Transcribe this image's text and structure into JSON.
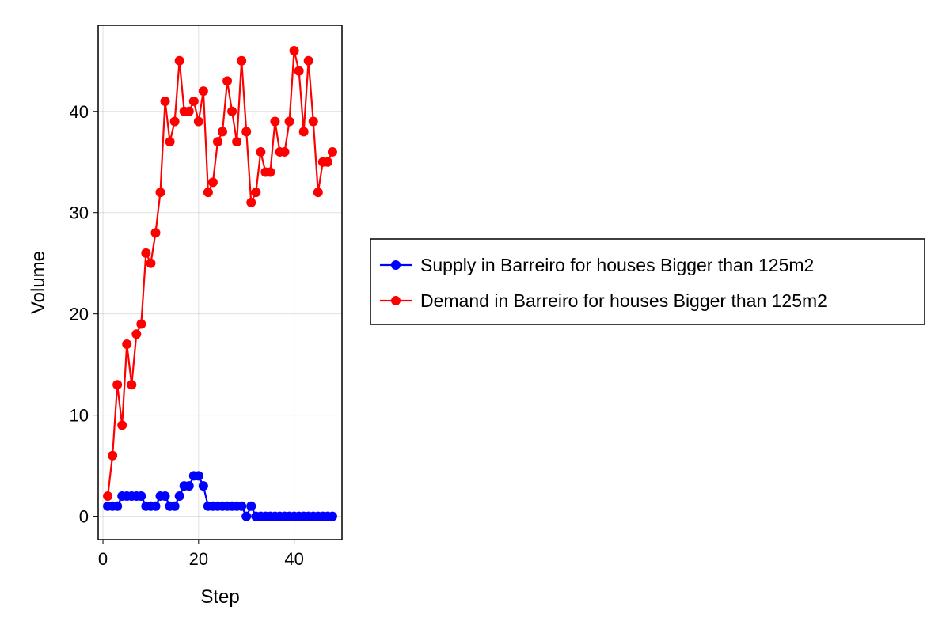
{
  "chart_data": {
    "type": "line",
    "title": "",
    "xlabel": "Step",
    "ylabel": "Volume",
    "xlim": [
      -1,
      50
    ],
    "ylim": [
      -2.3,
      48.5
    ],
    "x_ticks": [
      0,
      20,
      40
    ],
    "y_ticks": [
      0,
      10,
      20,
      30,
      40
    ],
    "grid": true,
    "legend_position": "right",
    "x": [
      1,
      2,
      3,
      4,
      5,
      6,
      7,
      8,
      9,
      10,
      11,
      12,
      13,
      14,
      15,
      16,
      17,
      18,
      19,
      20,
      21,
      22,
      23,
      24,
      25,
      26,
      27,
      28,
      29,
      30,
      31,
      32,
      33,
      34,
      35,
      36,
      37,
      38,
      39,
      40,
      41,
      42,
      43,
      44,
      45,
      46,
      47,
      48
    ],
    "series": [
      {
        "name": "Supply in Barreiro for houses Bigger than 125m2",
        "color": "#0000ff",
        "values": [
          1,
          1,
          1,
          2,
          2,
          2,
          2,
          2,
          1,
          1,
          1,
          2,
          2,
          1,
          1,
          2,
          3,
          3,
          4,
          4,
          3,
          1,
          1,
          1,
          1,
          1,
          1,
          1,
          1,
          0,
          1,
          0,
          0,
          0,
          0,
          0,
          0,
          0,
          0,
          0,
          0,
          0,
          0,
          0,
          0,
          0,
          0,
          0
        ]
      },
      {
        "name": "Demand in Barreiro for houses Bigger than 125m2",
        "color": "#ff0000",
        "values": [
          2,
          6,
          13,
          9,
          17,
          13,
          18,
          19,
          26,
          25,
          28,
          32,
          41,
          37,
          39,
          45,
          40,
          40,
          41,
          39,
          42,
          32,
          33,
          37,
          38,
          43,
          40,
          37,
          45,
          38,
          31,
          32,
          36,
          34,
          34,
          39,
          36,
          36,
          39,
          46,
          44,
          38,
          45,
          39,
          32,
          35,
          35,
          36
        ]
      }
    ]
  }
}
